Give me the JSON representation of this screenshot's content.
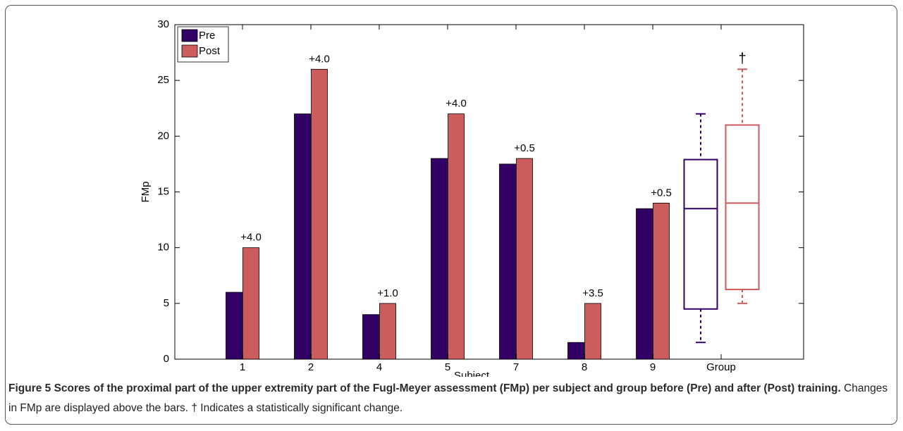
{
  "chart_data": {
    "type": "bar",
    "xlabel": "Subject",
    "ylabel": "FMp",
    "categories": [
      "1",
      "2",
      "4",
      "5",
      "7",
      "8",
      "9",
      "Group"
    ],
    "series": [
      {
        "name": "Pre",
        "color": "#330066",
        "values": [
          6,
          22,
          4,
          18,
          17.5,
          1.5,
          13.5,
          null
        ],
        "box": {
          "min": 1.5,
          "q1": 4.5,
          "median": 13.5,
          "q3": 17.9,
          "max": 22
        }
      },
      {
        "name": "Post",
        "color": "#cd5c5c",
        "values": [
          10,
          26,
          5,
          22,
          18,
          5,
          14,
          null
        ],
        "box": {
          "min": 5,
          "q1": 6.25,
          "median": 14,
          "q3": 21,
          "max": 26
        }
      }
    ],
    "change_labels": [
      "+4.0",
      "+4.0",
      "+1.0",
      "+4.0",
      "+0.5",
      "+3.5",
      "+0.5",
      "†"
    ],
    "ylim": [
      0,
      30
    ],
    "yticks": [
      0,
      5,
      10,
      15,
      20,
      25,
      30
    ],
    "legend": "upper left"
  },
  "caption": {
    "title": "Figure 5 Scores of the proximal part of the upper extremity part of the Fugl-Meyer assessment (FMp) per subject and group before (Pre) and after (Post) training.",
    "text": "Changes in FMp are displayed above the bars. † Indicates a statistically significant change."
  }
}
